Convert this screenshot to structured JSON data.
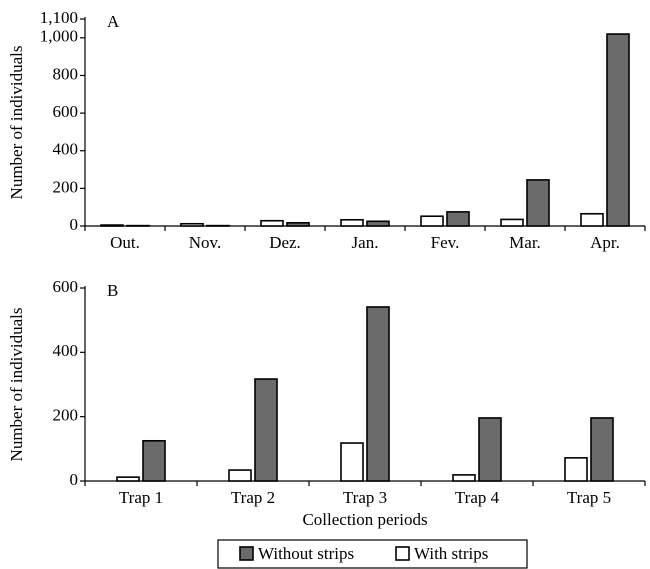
{
  "chart_data": [
    {
      "type": "bar",
      "panel": "A",
      "y_label": "Number of individuals",
      "categories": [
        "Out.",
        "Nov.",
        "Dez.",
        "Jan.",
        "Fev.",
        "Mar.",
        "Apr."
      ],
      "series": [
        {
          "name": "Without strips",
          "color": "#6b6b6b",
          "values": [
            2,
            2,
            17,
            25,
            75,
            245,
            1020
          ]
        },
        {
          "name": "With strips",
          "color": "#ffffff",
          "values": [
            5,
            12,
            28,
            33,
            52,
            35,
            65
          ]
        }
      ],
      "ylim": [
        0,
        1100
      ],
      "yticks": [
        0,
        200,
        400,
        600,
        800,
        {
          "value": 1000,
          "label": "1,000"
        },
        {
          "value": 1100,
          "label": "1,100"
        }
      ]
    },
    {
      "type": "bar",
      "panel": "B",
      "y_label": "Number of individuals",
      "x_label": "Collection periods",
      "categories": [
        "Trap 1",
        "Trap 2",
        "Trap 3",
        "Trap 4",
        "Trap 5"
      ],
      "series": [
        {
          "name": "Without strips",
          "color": "#6b6b6b",
          "values": [
            125,
            317,
            541,
            196,
            196
          ]
        },
        {
          "name": "With strips",
          "color": "#ffffff",
          "values": [
            12,
            34,
            118,
            19,
            72
          ]
        }
      ],
      "ylim": [
        0,
        600
      ],
      "yticks": [
        0,
        200,
        400,
        600
      ]
    }
  ]
}
